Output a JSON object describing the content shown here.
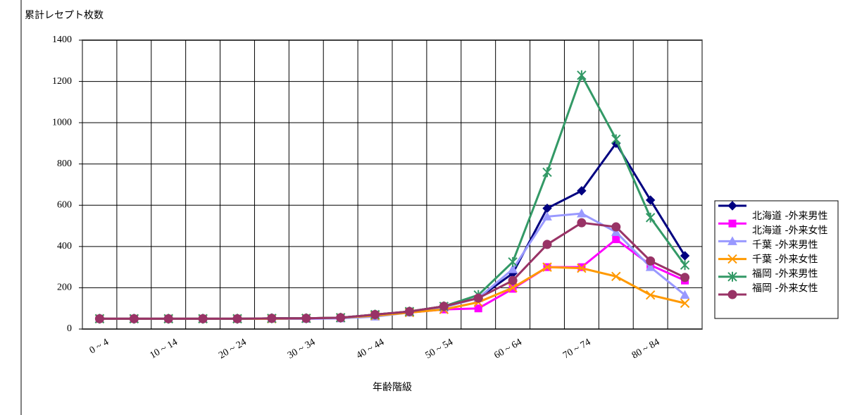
{
  "chart_data": {
    "type": "line",
    "y_label": "累計レセプト枚数",
    "x_label": "年齢階級",
    "categories": [
      "0 ~ 4",
      null,
      "10 ~ 14",
      null,
      "20 ~ 24",
      null,
      "30 ~ 34",
      null,
      "40 ~ 44",
      null,
      "50 ~ 54",
      null,
      "60 ~ 64",
      null,
      "70 ~ 74",
      null,
      "80 ~ 84",
      null
    ],
    "ylim": [
      0,
      1400
    ],
    "yticks": [
      0,
      200,
      400,
      600,
      800,
      1000,
      1200,
      1400
    ],
    "grid": true,
    "legend": "right",
    "series": [
      {
        "name": "北海道 -外来男性",
        "color": "#000080",
        "marker": "diamond",
        "values": [
          50,
          50,
          50,
          50,
          50,
          52,
          52,
          55,
          70,
          85,
          110,
          150,
          270,
          585,
          670,
          900,
          625,
          355
        ]
      },
      {
        "name": "北海道 -外来女性",
        "color": "#ff00ff",
        "marker": "square",
        "values": [
          50,
          50,
          50,
          50,
          50,
          50,
          50,
          52,
          65,
          80,
          95,
          100,
          195,
          300,
          300,
          435,
          310,
          235
        ]
      },
      {
        "name": "千葉 -外来男性",
        "color": "#9999ff",
        "marker": "triangle",
        "values": [
          50,
          50,
          50,
          50,
          50,
          50,
          50,
          52,
          60,
          80,
          105,
          150,
          290,
          545,
          560,
          470,
          300,
          165
        ]
      },
      {
        "name": "千葉 -外来女性",
        "color": "#ff9900",
        "marker": "x",
        "values": [
          50,
          50,
          50,
          50,
          50,
          50,
          52,
          55,
          65,
          80,
          95,
          130,
          200,
          300,
          295,
          255,
          165,
          125
        ]
      },
      {
        "name": "福岡 -外来男性",
        "color": "#339966",
        "marker": "star",
        "values": [
          50,
          50,
          50,
          50,
          50,
          52,
          52,
          55,
          70,
          85,
          110,
          165,
          325,
          760,
          1230,
          920,
          540,
          310
        ]
      },
      {
        "name": "福岡 -外来女性",
        "color": "#993366",
        "marker": "circle",
        "values": [
          50,
          50,
          50,
          50,
          50,
          52,
          52,
          55,
          70,
          85,
          110,
          150,
          235,
          410,
          515,
          495,
          330,
          250
        ]
      }
    ]
  }
}
